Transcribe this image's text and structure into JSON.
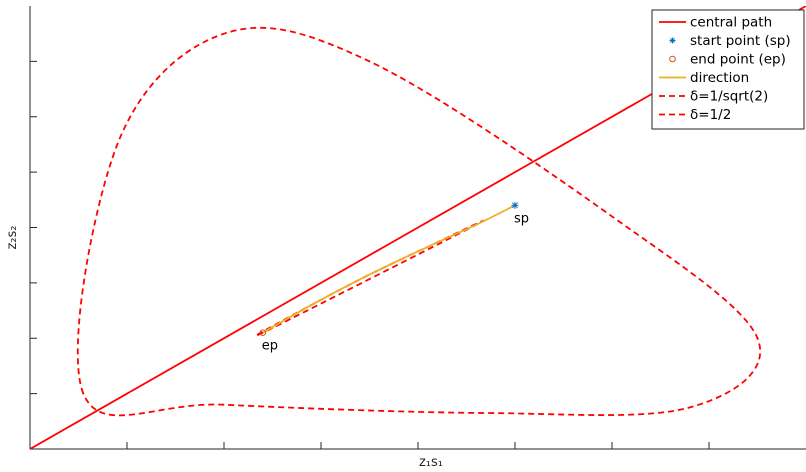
{
  "chart_data": {
    "type": "line",
    "xlabel": "z₁s₁",
    "ylabel": "z₂s₂",
    "xlim": [
      0,
      8
    ],
    "ylim": [
      0,
      8
    ],
    "xticks": [
      1,
      2,
      3,
      4,
      5,
      6,
      7
    ],
    "yticks": [
      1,
      2,
      3,
      4,
      5,
      6,
      7
    ],
    "ticklabels_shown": false,
    "grid": false,
    "legend": "top-right",
    "colors": {
      "central_path": "#ff0000",
      "start_point": "#0072bd",
      "end_point": "#d95319",
      "direction": "#edb120",
      "delta_curves": "#ff0000"
    },
    "series": [
      {
        "name": "central path",
        "style": "solid",
        "x": [
          0,
          8
        ],
        "y": [
          0,
          8
        ]
      },
      {
        "name": "start point (sp)",
        "style": "marker-asterisk",
        "x": [
          5
        ],
        "y": [
          4.4
        ]
      },
      {
        "name": "end point (ep)",
        "style": "marker-circle",
        "x": [
          2.4
        ],
        "y": [
          2.1
        ]
      },
      {
        "name": "direction",
        "style": "solid",
        "x": [
          2.4,
          2.9,
          3.5,
          4.1,
          4.6,
          5.0
        ],
        "y": [
          2.1,
          2.6,
          3.15,
          3.65,
          4.05,
          4.4
        ]
      },
      {
        "name": "δ=1/sqrt(2)",
        "style": "dashed",
        "x": [
          0.55,
          0.9,
          2.0,
          3.5,
          6.0,
          7.5,
          6.8,
          4.7,
          2.0,
          0.55
        ],
        "y": [
          1.0,
          5.5,
          7.5,
          7.0,
          4.2,
          2.0,
          0.75,
          0.65,
          0.8,
          1.0
        ]
      },
      {
        "name": "δ=1/2",
        "style": "dashed",
        "x": [
          0.75,
          0.9,
          2.0,
          3.5,
          5.2,
          5.2,
          2.5,
          1.5,
          0.75
        ],
        "y": [
          1.0,
          3.5,
          5.2,
          4.1,
          2.3,
          1.5,
          0.75,
          0.75,
          1.0
        ]
      }
    ],
    "point_labels": [
      {
        "text": "sp",
        "x": 5,
        "y": 4.4
      },
      {
        "text": "ep",
        "x": 2.4,
        "y": 2.1
      }
    ]
  }
}
